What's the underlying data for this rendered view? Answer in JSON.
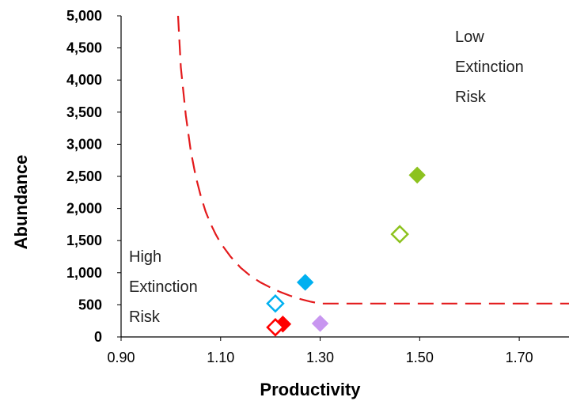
{
  "chart_data": {
    "type": "scatter",
    "title": "",
    "xlabel": "Productivity",
    "ylabel": "Abundance",
    "xlim": [
      0.9,
      1.8
    ],
    "ylim": [
      0,
      5000
    ],
    "x_ticks": [
      "0.90",
      "1.10",
      "1.30",
      "1.50",
      "1.70"
    ],
    "y_ticks": [
      "0",
      "500",
      "1,000",
      "1,500",
      "2,000",
      "2,500",
      "3,000",
      "3,500",
      "4,000",
      "4,500",
      "5,000"
    ],
    "grid": false,
    "annotations": {
      "low_risk": [
        "Low",
        "Extinction",
        "Risk"
      ],
      "high_risk": [
        "High",
        "Extinction",
        "Risk"
      ]
    },
    "points": [
      {
        "x": 1.495,
        "y": 2520,
        "color": "#8dc21f",
        "filled": true
      },
      {
        "x": 1.46,
        "y": 1600,
        "color": "#8dc21f",
        "filled": false
      },
      {
        "x": 1.27,
        "y": 850,
        "color": "#00b0f0",
        "filled": true
      },
      {
        "x": 1.21,
        "y": 520,
        "color": "#00b0f0",
        "filled": false
      },
      {
        "x": 1.225,
        "y": 200,
        "color": "#ff0000",
        "filled": true
      },
      {
        "x": 1.21,
        "y": 150,
        "color": "#ff0000",
        "filled": false
      },
      {
        "x": 1.3,
        "y": 210,
        "color": "#c896f0",
        "filled": true
      }
    ],
    "threshold_curve": {
      "color": "#e31a1c",
      "dash": true,
      "x": [
        1.0145,
        1.02,
        1.03,
        1.04,
        1.05,
        1.06,
        1.07,
        1.08,
        1.09,
        1.1,
        1.12,
        1.14,
        1.16,
        1.18,
        1.2,
        1.22,
        1.24,
        1.26,
        1.28,
        1.3,
        1.32,
        1.4,
        1.5,
        1.6,
        1.7,
        1.8
      ],
      "y": [
        5000,
        4200,
        3450,
        2900,
        2500,
        2200,
        1950,
        1760,
        1600,
        1460,
        1250,
        1080,
        950,
        850,
        770,
        700,
        640,
        590,
        550,
        520,
        520,
        520,
        520,
        520,
        520,
        520
      ]
    }
  }
}
